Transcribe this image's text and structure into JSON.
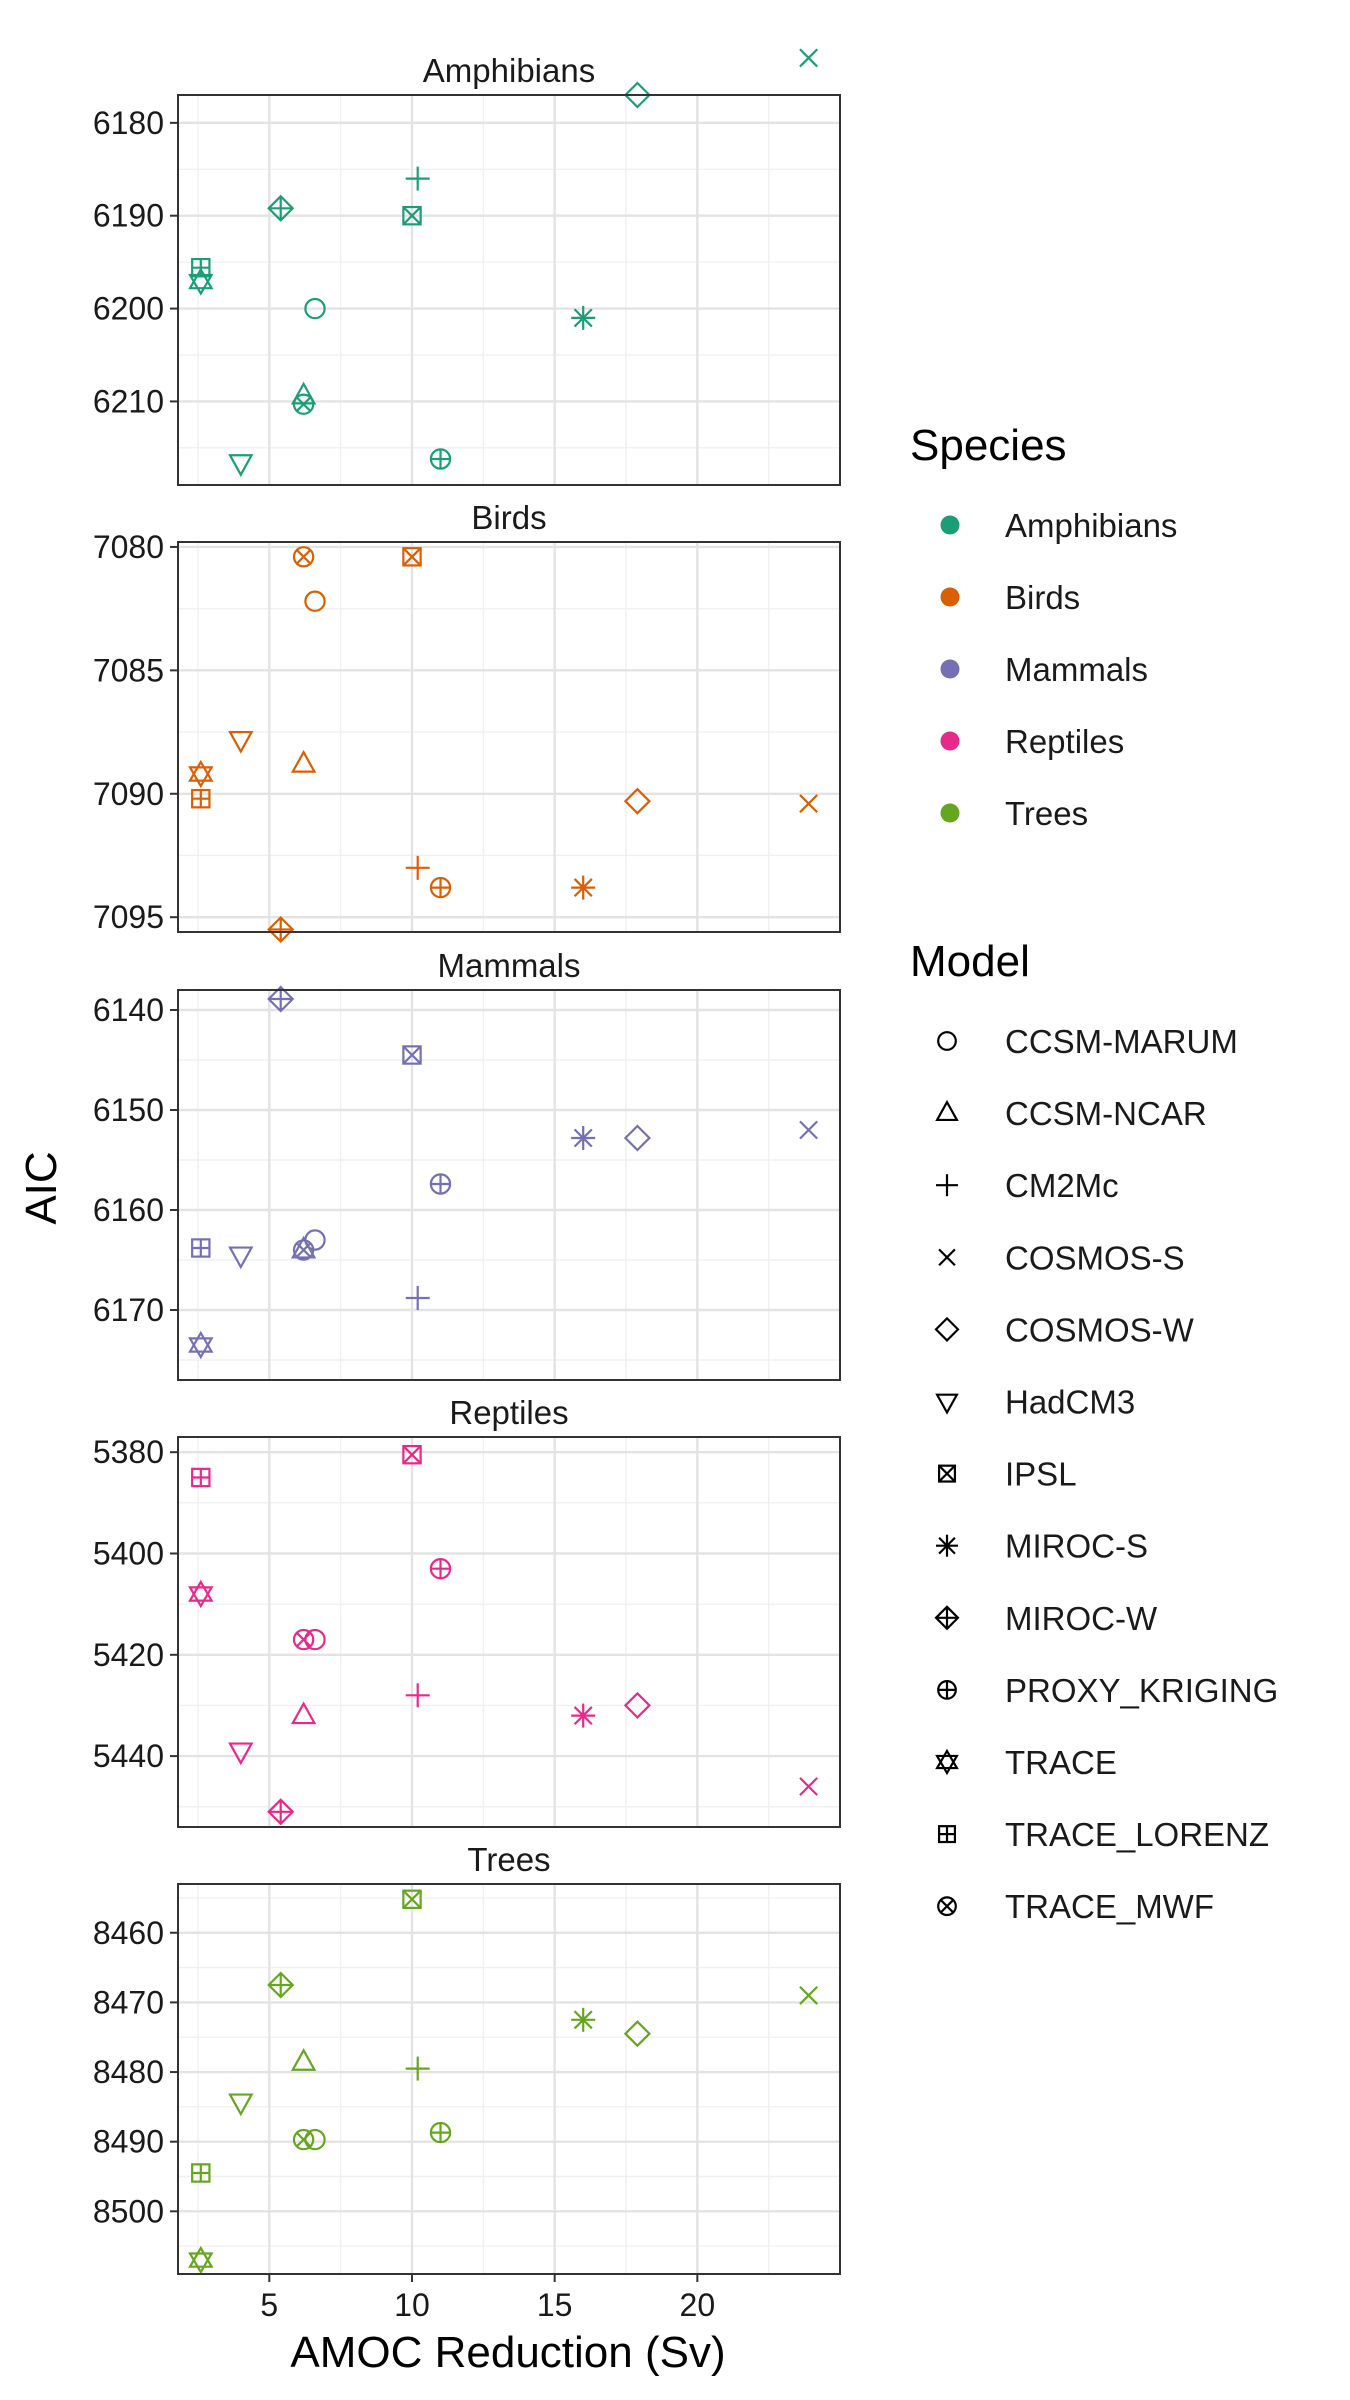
{
  "chart_data": {
    "type": "scatter",
    "xlabel": "AMOC Reduction (Sv)",
    "ylabel": "AIC",
    "xlim": [
      1.8,
      25.0
    ],
    "x_ticks": [
      5,
      10,
      15,
      20
    ],
    "grid": true,
    "legend_placement": "right",
    "species_legend_title": "Species",
    "model_legend_title": "Model",
    "species": [
      {
        "name": "Amphibians",
        "color": "#1B9E77"
      },
      {
        "name": "Birds",
        "color": "#D95F02"
      },
      {
        "name": "Mammals",
        "color": "#7570B3"
      },
      {
        "name": "Reptiles",
        "color": "#E7298A"
      },
      {
        "name": "Trees",
        "color": "#66A61E"
      }
    ],
    "models": [
      {
        "name": "CCSM-MARUM",
        "shape": "circle"
      },
      {
        "name": "CCSM-NCAR",
        "shape": "triangle-up"
      },
      {
        "name": "CM2Mc",
        "shape": "plus"
      },
      {
        "name": "COSMOS-S",
        "shape": "cross"
      },
      {
        "name": "COSMOS-W",
        "shape": "diamond"
      },
      {
        "name": "HadCM3",
        "shape": "triangle-down"
      },
      {
        "name": "IPSL",
        "shape": "square-cross"
      },
      {
        "name": "MIROC-S",
        "shape": "asterisk"
      },
      {
        "name": "MIROC-W",
        "shape": "diamond-plus"
      },
      {
        "name": "PROXY_KRIGING",
        "shape": "circle-plus"
      },
      {
        "name": "TRACE",
        "shape": "star-of-david"
      },
      {
        "name": "TRACE_LORENZ",
        "shape": "square-plus"
      },
      {
        "name": "TRACE_MWF",
        "shape": "circle-cross"
      }
    ],
    "model_x": {
      "CCSM-MARUM": 6.6,
      "CCSM-NCAR": 6.2,
      "CM2Mc": 10.2,
      "COSMOS-S": 23.9,
      "COSMOS-W": 17.9,
      "HadCM3": 4.0,
      "IPSL": 10.0,
      "MIROC-S": 16.0,
      "MIROC-W": 5.4,
      "PROXY_KRIGING": 11.0,
      "TRACE": 2.6,
      "TRACE_LORENZ": 2.6,
      "TRACE_MWF": 6.2
    },
    "panels": [
      {
        "title": "Amphibians",
        "ylim": [
          6177,
          6219
        ],
        "y_reversed": true,
        "y_ticks": [
          6180,
          6190,
          6200,
          6210
        ],
        "points": {
          "CCSM-MARUM": 6200.0,
          "CCSM-NCAR": 6209.4,
          "CM2Mc": 6186.0,
          "COSMOS-S": 6173.0,
          "COSMOS-W": 6177.0,
          "HadCM3": 6216.6,
          "IPSL": 6190.0,
          "MIROC-S": 6201.0,
          "MIROC-W": 6189.2,
          "PROXY_KRIGING": 6216.2,
          "TRACE": 6197.1,
          "TRACE_LORENZ": 6195.6,
          "TRACE_MWF": 6210.3
        }
      },
      {
        "title": "Birds",
        "ylim": [
          7079.8,
          7095.6
        ],
        "y_reversed": true,
        "y_ticks": [
          7080,
          7085,
          7090,
          7095
        ],
        "points": {
          "CCSM-MARUM": 7082.2,
          "CCSM-NCAR": 7088.8,
          "CM2Mc": 7093.0,
          "COSMOS-S": 7090.4,
          "COSMOS-W": 7090.3,
          "HadCM3": 7087.8,
          "IPSL": 7080.4,
          "MIROC-S": 7093.8,
          "MIROC-W": 7095.5,
          "PROXY_KRIGING": 7093.8,
          "TRACE": 7089.2,
          "TRACE_LORENZ": 7090.2,
          "TRACE_MWF": 7080.4
        }
      },
      {
        "title": "Mammals",
        "ylim": [
          6138,
          6177
        ],
        "y_reversed": true,
        "y_ticks": [
          6140,
          6150,
          6160,
          6170
        ],
        "points": {
          "CCSM-MARUM": 6163.0,
          "CCSM-NCAR": 6164.0,
          "CM2Mc": 6168.8,
          "COSMOS-S": 6152.0,
          "COSMOS-W": 6152.8,
          "HadCM3": 6164.5,
          "IPSL": 6144.5,
          "MIROC-S": 6152.8,
          "MIROC-W": 6138.9,
          "PROXY_KRIGING": 6157.4,
          "TRACE": 6173.5,
          "TRACE_LORENZ": 6163.8,
          "TRACE_MWF": 6164.0
        }
      },
      {
        "title": "Reptiles",
        "ylim": [
          5377,
          5454
        ],
        "y_reversed": true,
        "y_ticks": [
          5380,
          5400,
          5420,
          5440
        ],
        "points": {
          "CCSM-MARUM": 5417.0,
          "CCSM-NCAR": 5432.0,
          "CM2Mc": 5428.0,
          "COSMOS-S": 5446.0,
          "COSMOS-W": 5430.0,
          "HadCM3": 5439.0,
          "IPSL": 5380.5,
          "MIROC-S": 5432.0,
          "MIROC-W": 5451.0,
          "PROXY_KRIGING": 5403.0,
          "TRACE": 5408.0,
          "TRACE_LORENZ": 5385.0,
          "TRACE_MWF": 5417.0
        }
      },
      {
        "title": "Trees",
        "ylim": [
          8453,
          8509
        ],
        "y_reversed": true,
        "y_ticks": [
          8460,
          8470,
          8480,
          8490,
          8500
        ],
        "points": {
          "CCSM-MARUM": 8489.7,
          "CCSM-NCAR": 8478.6,
          "CM2Mc": 8479.5,
          "COSMOS-S": 8469.0,
          "COSMOS-W": 8474.5,
          "HadCM3": 8484.3,
          "IPSL": 8455.2,
          "MIROC-S": 8472.5,
          "MIROC-W": 8467.5,
          "PROXY_KRIGING": 8488.7,
          "TRACE": 8507.0,
          "TRACE_LORENZ": 8494.5,
          "TRACE_MWF": 8489.7
        }
      }
    ]
  }
}
